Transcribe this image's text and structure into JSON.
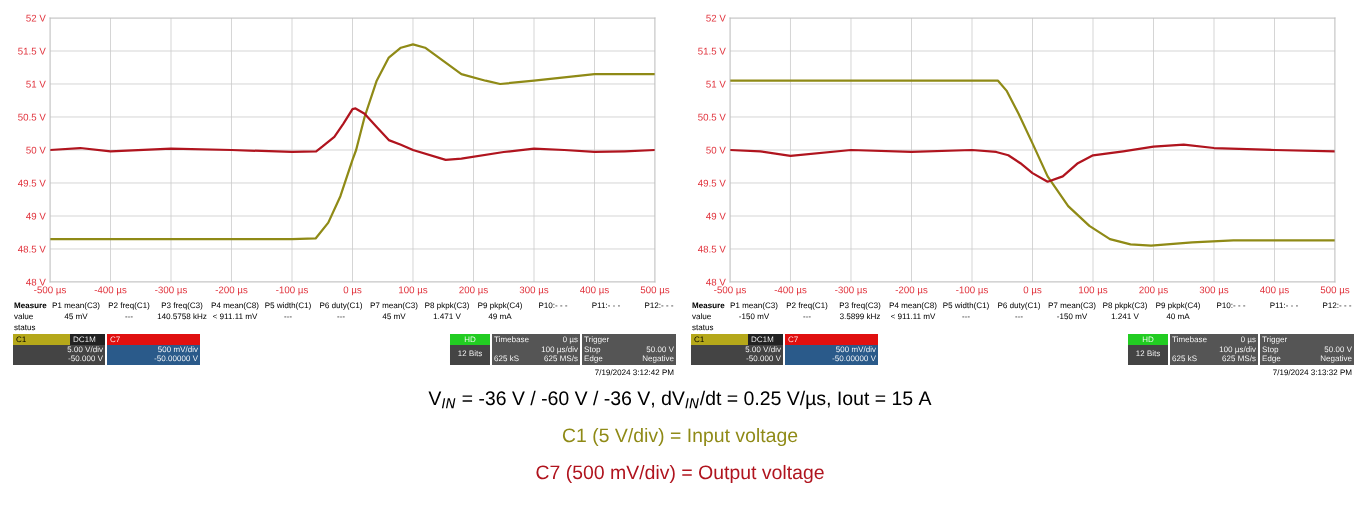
{
  "chart_data": [
    {
      "type": "line",
      "subtitle": "V$_{IN}$ = -36 V / -60 V / -36 V, dV$_{IN}$/dt = 0.25 V/µs, Iout = 15 A",
      "legend": "bottom",
      "grid": true,
      "xlim": [
        -500,
        500
      ],
      "xticks": [
        {
          "value": -500,
          "label": "-500 µs"
        },
        {
          "value": -400,
          "label": "-400 µs"
        },
        {
          "value": -300,
          "label": "-300 µs"
        },
        {
          "value": -200,
          "label": "-200 µs"
        },
        {
          "value": -100,
          "label": "-100 µs"
        },
        {
          "value": 0,
          "label": "0 µs"
        },
        {
          "value": 100,
          "label": "100 µs"
        },
        {
          "value": 200,
          "label": "200 µs"
        },
        {
          "value": 300,
          "label": "300 µs"
        },
        {
          "value": 400,
          "label": "400 µs"
        },
        {
          "value": 500,
          "label": "500 µs"
        }
      ],
      "ylim": [
        48,
        52
      ],
      "yticks": [
        {
          "value": 48,
          "label": "48 V"
        },
        {
          "value": 48.5,
          "label": "48.5 V"
        },
        {
          "value": 49,
          "label": "49 V"
        },
        {
          "value": 49.5,
          "label": "49.5 V"
        },
        {
          "value": 50,
          "label": "50 V"
        },
        {
          "value": 50.5,
          "label": "50.5 V"
        },
        {
          "value": 51,
          "label": "51 V"
        },
        {
          "value": 51.5,
          "label": "51.5 V"
        },
        {
          "value": 52,
          "label": "52 V"
        }
      ],
      "series": [
        {
          "name": "C1 (5 V/div) = Input voltage",
          "color": "#8f8a16",
          "x": [
            -500,
            -400,
            -300,
            -200,
            -100,
            -61,
            -40,
            -20,
            0,
            6,
            20,
            40,
            60,
            80,
            100,
            120,
            150,
            180,
            220,
            244,
            300,
            350,
            400,
            450,
            500
          ],
          "values": [
            48.65,
            48.65,
            48.65,
            48.65,
            48.65,
            48.66,
            48.9,
            49.3,
            49.85,
            50.0,
            50.5,
            51.05,
            51.4,
            51.55,
            51.6,
            51.55,
            51.35,
            51.15,
            51.05,
            51.0,
            51.05,
            51.1,
            51.15,
            51.15,
            51.15
          ]
        },
        {
          "name": "C7 (500 mV/div) = Output voltage",
          "color": "#b0141e",
          "x": [
            -500,
            -450,
            -400,
            -300,
            -200,
            -100,
            -60,
            -50,
            -30,
            -15,
            0,
            5,
            20,
            40,
            60,
            80,
            100,
            154,
            180,
            250,
            300,
            350,
            400,
            450,
            500
          ],
          "values": [
            50.0,
            50.03,
            49.98,
            50.02,
            50.0,
            49.97,
            49.98,
            50.05,
            50.2,
            50.4,
            50.62,
            50.63,
            50.55,
            50.35,
            50.15,
            50.08,
            50.0,
            49.85,
            49.87,
            49.97,
            50.02,
            50.0,
            49.97,
            49.98,
            50.0
          ]
        }
      ],
      "annotations": [
        "Measure",
        "P1 mean(C3)",
        "P2 freq(C1)",
        "P3 freq(C3)",
        "P4 mean(C8)",
        "P5 width(C1)",
        "P6 duty(C1)",
        "P7 mean(C3)",
        "P8 pkpk(C3)",
        "P9 pkpk(C4)",
        "P10:- - -",
        "P11:- - -",
        "P12:- - -",
        "value",
        "45 mV",
        "---",
        "140.5758 kHz",
        "< 911.11 mV",
        "---",
        "---",
        "45 mV",
        "1.471 V",
        "49 mA",
        "status",
        "C1",
        "DC1M",
        "5.00 V/div",
        "-50.000 V",
        "C7",
        "500 mV/div",
        "-50.00000 V",
        "HD",
        "12 Bits",
        "Timebase",
        "0 µs",
        "100 µs/div",
        "625 kS",
        "625 MS/s",
        "Trigger",
        "Stop",
        "50.00 V",
        "Edge",
        "Negative",
        "7/19/2024 3:12:42 PM"
      ]
    },
    {
      "type": "line",
      "grid": true,
      "xlim": [
        -500,
        500
      ],
      "xticks": [
        {
          "value": -500,
          "label": "-500 µs"
        },
        {
          "value": -400,
          "label": "-400 µs"
        },
        {
          "value": -300,
          "label": "-300 µs"
        },
        {
          "value": -200,
          "label": "-200 µs"
        },
        {
          "value": -100,
          "label": "-100 µs"
        },
        {
          "value": 0,
          "label": "0 µs"
        },
        {
          "value": 100,
          "label": "100 µs"
        },
        {
          "value": 200,
          "label": "200 µs"
        },
        {
          "value": 300,
          "label": "300 µs"
        },
        {
          "value": 400,
          "label": "400 µs"
        },
        {
          "value": 500,
          "label": "500 µs"
        }
      ],
      "ylim": [
        48,
        52
      ],
      "yticks": [
        {
          "value": 48,
          "label": "48 V"
        },
        {
          "value": 48.5,
          "label": "48.5 V"
        },
        {
          "value": 49,
          "label": "49 V"
        },
        {
          "value": 49.5,
          "label": "49.5 V"
        },
        {
          "value": 50,
          "label": "50 V"
        },
        {
          "value": 50.5,
          "label": "50.5 V"
        },
        {
          "value": 51,
          "label": "51 V"
        },
        {
          "value": 51.5,
          "label": "51.5 V"
        },
        {
          "value": 52,
          "label": "52 V"
        }
      ],
      "series": [
        {
          "color": "#8f8a16",
          "x": [
            -500,
            -400,
            -300,
            -200,
            -100,
            -57,
            -43,
            -23,
            0,
            25,
            59,
            94,
            128,
            162,
            196,
            264,
            332,
            400,
            500
          ],
          "values": [
            51.05,
            51.05,
            51.05,
            51.05,
            51.05,
            51.05,
            50.9,
            50.55,
            50.1,
            49.6,
            49.15,
            48.85,
            48.65,
            48.57,
            48.55,
            48.6,
            48.63,
            48.63,
            48.63
          ]
        },
        {
          "color": "#b0141e",
          "x": [
            -500,
            -450,
            -400,
            -300,
            -200,
            -100,
            -60,
            -40,
            -20,
            0,
            25,
            50,
            75,
            100,
            150,
            200,
            250,
            300,
            400,
            500
          ],
          "values": [
            50.0,
            49.98,
            49.91,
            50.0,
            49.97,
            50.0,
            49.97,
            49.92,
            49.8,
            49.65,
            49.52,
            49.6,
            49.8,
            49.92,
            49.98,
            50.05,
            50.08,
            50.03,
            50.0,
            49.98
          ]
        }
      ],
      "annotations": [
        "Measure",
        "P1 mean(C3)",
        "P2 freq(C1)",
        "P3 freq(C3)",
        "P4 mean(C8)",
        "P5 width(C1)",
        "P6 duty(C1)",
        "P7 mean(C3)",
        "P8 pkpk(C3)",
        "P9 pkpk(C4)",
        "P10:- - -",
        "P11:- - -",
        "P12:- - -",
        "value",
        "-150 mV",
        "---",
        "3.5899 kHz",
        "< 911.11 mV",
        "---",
        "---",
        "-150 mV",
        "1.241 V",
        "40 mA",
        "status",
        "C1",
        "DC1M",
        "5.00 V/div",
        "-50.000 V",
        "C7",
        "500 mV/div",
        "-50.00000 V",
        "HD",
        "12 Bits",
        "Timebase",
        "0 µs",
        "100 µs/div",
        "625 kS",
        "625 MS/s",
        "Trigger",
        "Stop",
        "50.00 V",
        "Edge",
        "Negative",
        "7/19/2024 3:13:32 PM"
      ]
    }
  ]
}
